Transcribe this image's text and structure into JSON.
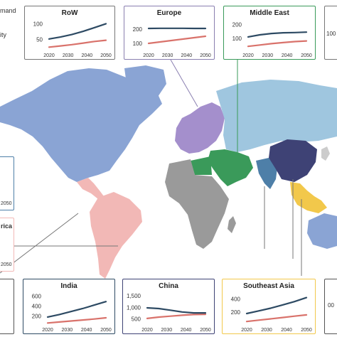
{
  "legend": {
    "line1_fragment": "mand",
    "line2_fragment": "ity"
  },
  "colors": {
    "demand_line": "#2d4a63",
    "capacity_line": "#d9726b",
    "rest_of_world": "#8aa4d4",
    "europe": "#a48fcc",
    "middle_east": "#3a9a5a",
    "russia_region": "#9fc6df",
    "china": "#3e4275",
    "india": "#4e7fa8",
    "southeast_asia": "#f2c84b",
    "africa": "#9a9a9a",
    "latin_america": "#f2b8b6",
    "japan_korea": "#cccccc"
  },
  "panels": [
    {
      "id": "row",
      "title": "RoW",
      "border": "#777777",
      "y_ticks": [
        "50",
        "100"
      ],
      "x_ticks": [
        "2020",
        "2030",
        "2040",
        "2050"
      ],
      "demand": [
        52,
        58,
        66,
        76,
        88,
        100
      ],
      "capacity": [
        26,
        30,
        34,
        39,
        44,
        48
      ],
      "ymin": 20,
      "ymax": 110
    },
    {
      "id": "europe",
      "title": "Europe",
      "border": "#8a7fb0",
      "y_ticks": [
        "100",
        "200"
      ],
      "x_ticks": [
        "2020",
        "2030",
        "2040",
        "2050"
      ],
      "demand": [
        205,
        206,
        206,
        206,
        205,
        205
      ],
      "capacity": [
        100,
        110,
        120,
        130,
        140,
        150
      ],
      "ymin": 60,
      "ymax": 260
    },
    {
      "id": "middle_east",
      "title": "Middle East",
      "border": "#3a9a5a",
      "y_ticks": [
        "100",
        "200"
      ],
      "x_ticks": [
        "2020",
        "2030",
        "2040",
        "2050"
      ],
      "demand": [
        110,
        125,
        135,
        140,
        142,
        145
      ],
      "capacity": [
        40,
        50,
        60,
        68,
        75,
        80
      ],
      "ymin": 20,
      "ymax": 230
    },
    {
      "id": "india",
      "title": "India",
      "border": "#2d4a63",
      "y_ticks": [
        "200",
        "400",
        "600"
      ],
      "x_ticks": [
        "2020",
        "2030",
        "2040",
        "2050"
      ],
      "demand": [
        180,
        230,
        290,
        350,
        420,
        490
      ],
      "capacity": [
        60,
        80,
        100,
        120,
        140,
        165
      ],
      "ymin": 50,
      "ymax": 650
    },
    {
      "id": "china",
      "title": "China",
      "border": "#3e4275",
      "y_ticks": [
        "500",
        "1,000",
        "1,500"
      ],
      "x_ticks": [
        "2020",
        "2030",
        "2040",
        "2050"
      ],
      "demand": [
        980,
        950,
        880,
        800,
        760,
        760
      ],
      "capacity": [
        520,
        580,
        620,
        660,
        690,
        700
      ],
      "ymin": 300,
      "ymax": 1600
    },
    {
      "id": "southeast_asia",
      "title": "Southeast Asia",
      "border": "#f2c84b",
      "y_ticks": [
        "200",
        "400"
      ],
      "x_ticks": [
        "2020",
        "2030",
        "2040",
        "2050"
      ],
      "demand": [
        180,
        220,
        260,
        310,
        360,
        420
      ],
      "capacity": [
        60,
        80,
        100,
        120,
        140,
        160
      ],
      "ymin": 30,
      "ymax": 480
    }
  ],
  "partial_panels": {
    "far_right_tick": "100",
    "left_tick": "2050",
    "left_label": "rica",
    "left_tick_2": "2050",
    "bottom_right_tick": "00"
  }
}
